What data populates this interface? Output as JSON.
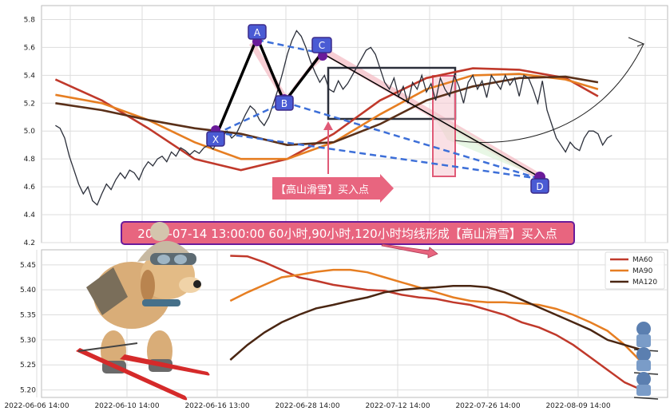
{
  "chart_data": [
    {
      "type": "line",
      "panel": "price",
      "ylim": [
        4.2,
        5.9
      ],
      "y_ticks": [
        "4.2",
        "4.4",
        "4.6",
        "4.8",
        "5.0",
        "5.2",
        "5.4",
        "5.6",
        "5.8"
      ],
      "grid": true,
      "series": [
        {
          "key": "close",
          "color": "#2b2f3a",
          "x": [
            0,
            1,
            2,
            3,
            4,
            5,
            6,
            7,
            8,
            9,
            10,
            11,
            12,
            13,
            14,
            15,
            16,
            17,
            18,
            19,
            20,
            21,
            22,
            23,
            24,
            25,
            26,
            27,
            28,
            29,
            30,
            31,
            32,
            33,
            34,
            35,
            36,
            37,
            38,
            39,
            40,
            41,
            42,
            43,
            44,
            45,
            46,
            47,
            48,
            49,
            50,
            51,
            52,
            53,
            54,
            55,
            56,
            57,
            58,
            59,
            60,
            61,
            62,
            63,
            64,
            65,
            66,
            67,
            68,
            69,
            70,
            71,
            72,
            73,
            74,
            75,
            76,
            77,
            78,
            79,
            80,
            81,
            82,
            83,
            84,
            85,
            86,
            87,
            88,
            89,
            90,
            91,
            92,
            93,
            94,
            95,
            96,
            97,
            98,
            99,
            100,
            101,
            102,
            103,
            104,
            105,
            106,
            107,
            108,
            109,
            110,
            111,
            112,
            113,
            114,
            115,
            116,
            117,
            118,
            119,
            120
          ],
          "values": [
            5.04,
            5.02,
            4.95,
            4.82,
            4.72,
            4.62,
            4.55,
            4.6,
            4.5,
            4.47,
            4.55,
            4.62,
            4.58,
            4.65,
            4.7,
            4.66,
            4.72,
            4.7,
            4.65,
            4.73,
            4.78,
            4.75,
            4.8,
            4.82,
            4.78,
            4.85,
            4.82,
            4.88,
            4.86,
            4.83,
            4.86,
            4.84,
            4.88,
            4.9,
            4.87,
            4.93,
            4.96,
            5.0,
            4.95,
            4.98,
            5.05,
            5.12,
            5.18,
            5.15,
            5.08,
            5.04,
            5.1,
            5.2,
            5.3,
            5.42,
            5.55,
            5.65,
            5.72,
            5.68,
            5.6,
            5.5,
            5.42,
            5.35,
            5.4,
            5.3,
            5.28,
            5.36,
            5.3,
            5.34,
            5.4,
            5.46,
            5.52,
            5.58,
            5.6,
            5.55,
            5.45,
            5.35,
            5.3,
            5.38,
            5.25,
            5.32,
            5.2,
            5.35,
            5.3,
            5.4,
            5.28,
            5.34,
            5.22,
            5.38,
            5.3,
            5.25,
            5.4,
            5.32,
            5.2,
            5.35,
            5.4,
            5.3,
            5.36,
            5.24,
            5.4,
            5.35,
            5.3,
            5.4,
            5.33,
            5.38,
            5.25,
            5.4,
            5.38,
            5.3,
            5.2,
            5.36,
            5.15,
            5.05,
            4.95,
            4.9,
            4.85,
            4.92,
            4.88,
            4.86,
            4.95,
            5.0,
            5.0,
            4.98,
            4.9,
            4.95,
            4.97
          ]
        },
        {
          "key": "ma_fast",
          "color": "#c0392b",
          "x": [
            0,
            10,
            20,
            30,
            40,
            50,
            60,
            70,
            80,
            90,
            100,
            110,
            117
          ],
          "values": [
            5.37,
            5.22,
            5.02,
            4.8,
            4.72,
            4.8,
            4.98,
            5.22,
            5.38,
            5.45,
            5.44,
            5.38,
            5.25
          ]
        },
        {
          "key": "ma_mid",
          "color": "#e67e22",
          "x": [
            0,
            10,
            20,
            30,
            40,
            50,
            60,
            70,
            80,
            90,
            100,
            110,
            117
          ],
          "values": [
            5.26,
            5.2,
            5.08,
            4.92,
            4.8,
            4.8,
            4.92,
            5.12,
            5.3,
            5.4,
            5.41,
            5.37,
            5.3
          ]
        },
        {
          "key": "ma_slow",
          "color": "#5a3019",
          "x": [
            0,
            10,
            20,
            30,
            40,
            50,
            60,
            70,
            80,
            90,
            100,
            110,
            117
          ],
          "values": [
            5.2,
            5.15,
            5.08,
            5.02,
            4.98,
            4.9,
            4.92,
            5.05,
            5.22,
            5.32,
            5.38,
            5.39,
            5.35
          ]
        }
      ],
      "points": [
        {
          "label": "A",
          "x": 55,
          "y": 5.72
        },
        {
          "label": "B",
          "x": 67,
          "y": 5.28
        },
        {
          "label": "C",
          "x": 77,
          "y": 5.62
        },
        {
          "label": "X",
          "x": 45,
          "y": 5.04
        },
        {
          "label": "D",
          "x": 130,
          "y": 4.7
        }
      ],
      "annotation_text": "【高山滑雪】买入点"
    },
    {
      "type": "line",
      "panel": "moving_averages",
      "ylim": [
        5.185,
        5.48
      ],
      "y_ticks": [
        "5.20",
        "5.25",
        "5.30",
        "5.35",
        "5.40",
        "5.45"
      ],
      "x_ticks": [
        "2022-06-06 14:00",
        "2022-06-10 14:00",
        "2022-06-16 13:00",
        "2022-06-28 14:00",
        "2022-07-12 14:00",
        "2022-07-26 14:00",
        "2022-08-09 14:00"
      ],
      "grid": true,
      "legend": "top-right",
      "series": [
        {
          "name": "MA60",
          "color": "#c0392b",
          "x": [
            0,
            2,
            4,
            6,
            8,
            10,
            12,
            14,
            16,
            18,
            20,
            22,
            24,
            26,
            28,
            30,
            32,
            34,
            36,
            38,
            40,
            42,
            44,
            46,
            48
          ],
          "values": [
            5.468,
            5.467,
            5.455,
            5.44,
            5.425,
            5.418,
            5.41,
            5.405,
            5.4,
            5.398,
            5.39,
            5.385,
            5.382,
            5.375,
            5.37,
            5.36,
            5.35,
            5.335,
            5.325,
            5.31,
            5.29,
            5.265,
            5.24,
            5.215,
            5.2
          ]
        },
        {
          "name": "MA90",
          "color": "#e67e22",
          "x": [
            0,
            2,
            4,
            6,
            8,
            10,
            12,
            14,
            16,
            18,
            20,
            22,
            24,
            26,
            28,
            30,
            32,
            34,
            36,
            38,
            40,
            42,
            44,
            46,
            48
          ],
          "values": [
            5.378,
            5.395,
            5.41,
            5.425,
            5.43,
            5.436,
            5.44,
            5.44,
            5.435,
            5.425,
            5.415,
            5.405,
            5.395,
            5.385,
            5.378,
            5.375,
            5.375,
            5.373,
            5.37,
            5.362,
            5.35,
            5.335,
            5.318,
            5.29,
            5.255
          ]
        },
        {
          "name": "MA120",
          "color": "#4a2612",
          "x": [
            0,
            2,
            4,
            6,
            8,
            10,
            12,
            14,
            16,
            18,
            20,
            22,
            24,
            26,
            28,
            30,
            32,
            34,
            36,
            38,
            40,
            42,
            44,
            46,
            48
          ],
          "values": [
            5.26,
            5.29,
            5.315,
            5.335,
            5.35,
            5.363,
            5.37,
            5.378,
            5.385,
            5.395,
            5.4,
            5.403,
            5.405,
            5.408,
            5.408,
            5.405,
            5.395,
            5.38,
            5.365,
            5.35,
            5.335,
            5.32,
            5.3,
            5.29,
            5.28
          ]
        }
      ]
    }
  ],
  "banner_text": "2022-07-14 13:00:00 60小时,90小时,120小时均线形成【高山滑雪】买入点",
  "colors": {
    "accent": "#e05a77",
    "point_fill": "#4a5bd4",
    "point_border": "#3b2a8a",
    "dash": "#3d6fd8",
    "box": "#2b2f3a"
  }
}
